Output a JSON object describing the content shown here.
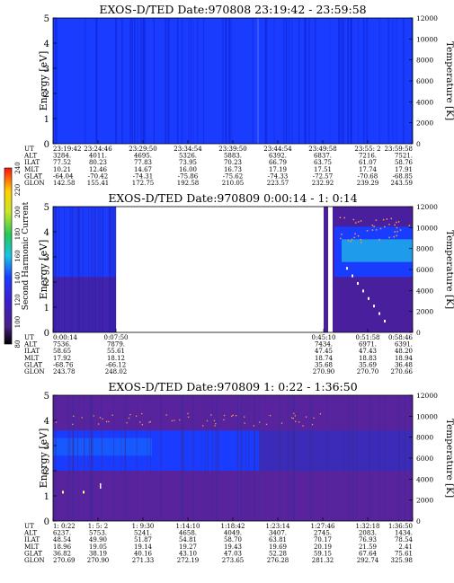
{
  "figure": {
    "panel_rows": [
      "UT",
      "ALT",
      "ILAT",
      "MLT",
      "GLAT",
      "GLON"
    ],
    "colorbar": {
      "label": "Second Harmonic Current",
      "ticks": [
        "80",
        "100",
        "120",
        "140",
        "160",
        "180",
        "200",
        "220",
        "240"
      ],
      "range": [
        80,
        240
      ]
    },
    "left_axis": {
      "label": "Energy [eV]",
      "ticks": [
        "0",
        "1",
        "2",
        "3",
        "4",
        "5"
      ]
    },
    "right_axis": {
      "label": "Temperature [K]",
      "ticks": [
        "0",
        "2000",
        "4000",
        "6000",
        "8000",
        "10000",
        "12000"
      ]
    }
  },
  "panels": [
    {
      "title": "EXOS-D/TED   Date:970808  23:19:42 - 23:59:58",
      "columns": [
        {
          "UT": "23:19:42",
          "ALT": "3284.",
          "ILAT": "77.52",
          "MLT": "10.21",
          "GLAT": "-64.04",
          "GLON": "142.58"
        },
        {
          "UT": "23:24:46",
          "ALT": "4011.",
          "ILAT": "80.23",
          "MLT": "12.46",
          "GLAT": "-70.42",
          "GLON": "155.41"
        },
        {
          "UT": "23:29:50",
          "ALT": "4695.",
          "ILAT": "77.83",
          "MLT": "14.67",
          "GLAT": "-74.31",
          "GLON": "172.75"
        },
        {
          "UT": "23:34:54",
          "ALT": "5326.",
          "ILAT": "73.95",
          "MLT": "16.00",
          "GLAT": "-75.86",
          "GLON": "192.58"
        },
        {
          "UT": "23:39:50",
          "ALT": "5883.",
          "ILAT": "70.23",
          "MLT": "16.73",
          "GLAT": "-75.62",
          "GLON": "210.05"
        },
        {
          "UT": "23:44:54",
          "ALT": "6392.",
          "ILAT": "66.79",
          "MLT": "17.19",
          "GLAT": "-74.33",
          "GLON": "223.57"
        },
        {
          "UT": "23:49:58",
          "ALT": "6837.",
          "ILAT": "63.75",
          "MLT": "17.51",
          "GLAT": "-72.57",
          "GLON": "232.92"
        },
        {
          "UT": "23:55: 2",
          "ALT": "7216.",
          "ILAT": "61.07",
          "MLT": "17.74",
          "GLAT": "-70.68",
          "GLON": "239.29"
        },
        {
          "UT": "23:59:58",
          "ALT": "7521.",
          "ILAT": "58.76",
          "MLT": "17.91",
          "GLAT": "-68.85",
          "GLON": "243.59"
        }
      ]
    },
    {
      "title": "EXOS-D/TED   Date:970809  0:00:14 - 1: 0:14",
      "columns": [
        {
          "UT": "0:00:14",
          "ALT": "7536.",
          "ILAT": "58.65",
          "MLT": "17.92",
          "GLAT": "-68.76",
          "GLON": "243.78"
        },
        {
          "UT": "0:07:50",
          "ALT": "7879.",
          "ILAT": "55.61",
          "MLT": "18.12",
          "GLAT": "-66.12",
          "GLON": "248.02"
        },
        {
          "UT": "0:45:10",
          "ALT": "7434.",
          "ILAT": "47.45",
          "MLT": "18.74",
          "GLAT": "35.68",
          "GLON": "270.90"
        },
        {
          "UT": "0:51:58",
          "ALT": "6971.",
          "ILAT": "47.43",
          "MLT": "18.83",
          "GLAT": "35.69",
          "GLON": "270.70"
        },
        {
          "UT": "0:58:46",
          "ALT": "6391.",
          "ILAT": "48.20",
          "MLT": "18.94",
          "GLAT": "36.48",
          "GLON": "270.66"
        }
      ]
    },
    {
      "title": "EXOS-D/TED   Date:970809  1: 0:22 - 1:36:50",
      "columns": [
        {
          "UT": "1: 0:22",
          "ALT": "6237.",
          "ILAT": "48.54",
          "MLT": "18.96",
          "GLAT": "36.82",
          "GLON": "270.69"
        },
        {
          "UT": "1: 5: 2",
          "ALT": "5753.",
          "ILAT": "49.90",
          "MLT": "19.05",
          "GLAT": "38.19",
          "GLON": "270.90"
        },
        {
          "UT": "1: 9:30",
          "ALT": "5241.",
          "ILAT": "51.87",
          "MLT": "19.14",
          "GLAT": "40.16",
          "GLON": "271.33"
        },
        {
          "UT": "1:14:10",
          "ALT": "4658.",
          "ILAT": "54.81",
          "MLT": "19.27",
          "GLAT": "43.10",
          "GLON": "272.19"
        },
        {
          "UT": "1:18:42",
          "ALT": "4049.",
          "ILAT": "58.70",
          "MLT": "19.43",
          "GLAT": "47.03",
          "GLON": "273.65"
        },
        {
          "UT": "1:23:14",
          "ALT": "3407.",
          "ILAT": "63.81",
          "MLT": "19.69",
          "GLAT": "52.28",
          "GLON": "276.28"
        },
        {
          "UT": "1:27:46",
          "ALT": "2745.",
          "ILAT": "70.17",
          "MLT": "20.19",
          "GLAT": "59.15",
          "GLON": "281.32"
        },
        {
          "UT": "1:32:18",
          "ALT": "2083.",
          "ILAT": "76.93",
          "MLT": "21.59",
          "GLAT": "67.64",
          "GLON": "292.74"
        },
        {
          "UT": "1:36:50",
          "ALT": "1434.",
          "ILAT": "78.54",
          "MLT": "2.41",
          "GLAT": "75.61",
          "GLON": "325.98"
        }
      ]
    }
  ],
  "chart_data": [
    {
      "type": "heatmap",
      "title": "EXOS-D/TED   Date:970808  23:19:42 - 23:59:58",
      "ylabel": "Energy [eV]",
      "ylim": [
        0,
        5
      ],
      "y2label": "Temperature [K]",
      "y2lim": [
        0,
        12000
      ],
      "x_ticks": [
        "23:19:42",
        "23:24:46",
        "23:29:50",
        "23:34:54",
        "23:39:50",
        "23:44:54",
        "23:49:58",
        "23:55: 2",
        "23:59:58"
      ],
      "color_scale": {
        "label": "Second Harmonic Current",
        "range": [
          80,
          240
        ]
      },
      "dominant_level": 140,
      "colors": {
        "background": "#1a3cff",
        "stripe": "#0f24d8"
      }
    },
    {
      "type": "heatmap",
      "title": "EXOS-D/TED   Date:970809  0:00:14 - 1: 0:14",
      "ylabel": "Energy [eV]",
      "ylim": [
        0,
        5
      ],
      "y2label": "Temperature [K]",
      "y2lim": [
        0,
        12000
      ],
      "x_ticks": [
        "0:00:14",
        "0:07:50",
        "0:45:10",
        "0:51:58",
        "0:58:46"
      ],
      "color_scale": {
        "label": "Second Harmonic Current",
        "range": [
          80,
          240
        ]
      },
      "data_gap": [
        "0:07:50",
        "0:45:10"
      ],
      "colors": {
        "low": "#4a1f9e",
        "mid": "#1a3cff",
        "high": "#1fb4e6"
      }
    },
    {
      "type": "heatmap",
      "title": "EXOS-D/TED   Date:970809  1: 0:22 - 1:36:50",
      "ylabel": "Energy [eV]",
      "ylim": [
        0,
        5
      ],
      "y2label": "Temperature [K]",
      "y2lim": [
        0,
        12000
      ],
      "x_ticks": [
        "1: 0:22",
        "1: 5: 2",
        "1: 9:30",
        "1:14:10",
        "1:18:42",
        "1:23:14",
        "1:27:46",
        "1:32:18",
        "1:36:50"
      ],
      "color_scale": {
        "label": "Second Harmonic Current",
        "range": [
          80,
          240
        ]
      },
      "bands_eV": [
        {
          "from": 0,
          "to": 2,
          "level": 110
        },
        {
          "from": 2,
          "to": 3.6,
          "level": 140
        },
        {
          "from": 3.6,
          "to": 5,
          "level": 115
        }
      ],
      "colors": {
        "low": "#5a239e",
        "mid": "#1a3cff",
        "high": "#3a2bb8"
      }
    }
  ]
}
